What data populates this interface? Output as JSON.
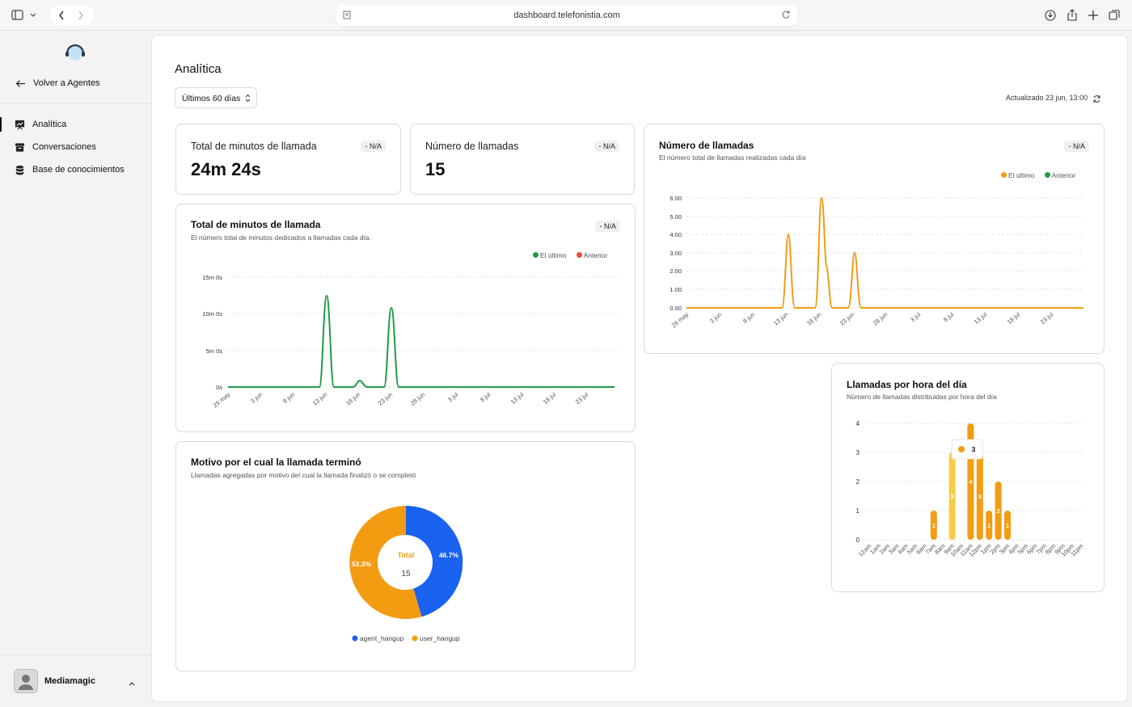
{
  "browser": {
    "url": "dashboard.telefonistia.com"
  },
  "sidebar": {
    "back": "Volver a Agentes",
    "items": [
      {
        "label": "Analítica"
      },
      {
        "label": "Conversaciones"
      },
      {
        "label": "Base de conocimientos"
      }
    ],
    "user": "Mediamagic"
  },
  "page": {
    "title": "Analítica",
    "range": "Últimos 60 días",
    "updated": "Actualizado 23 jun, 13:00"
  },
  "kpis": [
    {
      "label": "Total de minutos de llamada",
      "value": "24m 24s",
      "badge": "- N/A"
    },
    {
      "label": "Número de llamadas",
      "value": "15",
      "badge": "- N/A"
    }
  ],
  "colors": {
    "green": "#1e9a4a",
    "red": "#ef4a3a",
    "orange": "#f39c12",
    "blue": "#1a62f0",
    "yellow": "#f8cc47"
  },
  "chart_data": [
    {
      "type": "line",
      "title": "Total de minutos de llamada",
      "subtitle": "El número total de minutos dedicados a llamadas cada día.",
      "badge": "- N/A",
      "legend": [
        "El último",
        "Anterior"
      ],
      "legend_position": "top-right",
      "x": [
        "29 may",
        "3 jun",
        "8 jun",
        "13 jun",
        "18 jun",
        "23 jun",
        "28 jun",
        "3 jul",
        "8 jul",
        "13 jul",
        "18 jul",
        "23 jul"
      ],
      "y_ticks": [
        "15m 0s",
        "10m 0s",
        "5m 0s",
        "0s"
      ],
      "ylim": [
        0,
        15
      ],
      "series": [
        {
          "name": "El último",
          "peaks": [
            {
              "day": "14 jun",
              "minutes": 12.4
            },
            {
              "day": "18 jun",
              "minutes": 0.9
            },
            {
              "day": "19 jun",
              "minutes": 0.3
            },
            {
              "day": "24 jun",
              "minutes": 10.8
            }
          ]
        }
      ]
    },
    {
      "type": "line",
      "title": "Número de llamadas",
      "subtitle": "El número total de llamadas realizadas cada día",
      "badge": "- N/A",
      "legend": [
        "El último",
        "Anterior"
      ],
      "legend_position": "top-right",
      "x": [
        "29 may",
        "3 jun",
        "8 jun",
        "13 jun",
        "18 jun",
        "23 jun",
        "28 jun",
        "3 jul",
        "8 jul",
        "13 jul",
        "18 jul",
        "23 jul"
      ],
      "y_ticks": [
        "6.00",
        "5.00",
        "4.00",
        "3.00",
        "2.00",
        "1.00",
        "0.00"
      ],
      "ylim": [
        0,
        6
      ],
      "series": [
        {
          "name": "El último",
          "peaks": [
            {
              "day": "14 jun",
              "calls": 4
            },
            {
              "day": "19 jun",
              "calls": 6
            },
            {
              "day": "20 jun",
              "calls": 2
            },
            {
              "day": "24 jun",
              "calls": 3
            }
          ]
        }
      ]
    },
    {
      "type": "pie",
      "title": "Motivo por el cual la llamada terminó",
      "subtitle": "Llamadas agregadas por motivo del cual la llamada finalizó o se completó",
      "center_label": "Total",
      "center_value": "15",
      "slices": [
        {
          "name": "agent_hangup",
          "percent": "46.7%",
          "value": 46.7
        },
        {
          "name": "user_hangup",
          "percent": "53.3%",
          "value": 53.3
        }
      ]
    },
    {
      "type": "bar",
      "title": "Llamadas por hora del día",
      "subtitle": "Número de llamadas distribuidas por hora del día",
      "ylim": [
        0,
        4
      ],
      "y_ticks": [
        "4",
        "3",
        "2",
        "1",
        "0"
      ],
      "categories": [
        "12am",
        "1am",
        "2am",
        "3am",
        "4am",
        "5am",
        "6am",
        "7am",
        "8am",
        "9am",
        "10am",
        "11am",
        "12pm",
        "1pm",
        "2pm",
        "3pm",
        "4pm",
        "5pm",
        "6pm",
        "7pm",
        "8pm",
        "9pm",
        "10pm",
        "11pm"
      ],
      "values": [
        0,
        0,
        0,
        0,
        0,
        0,
        0,
        1,
        0,
        3,
        0,
        4,
        3,
        1,
        2,
        1,
        0,
        0,
        0,
        0,
        0,
        0,
        0,
        0
      ],
      "tooltip": {
        "value": "3"
      }
    }
  ]
}
